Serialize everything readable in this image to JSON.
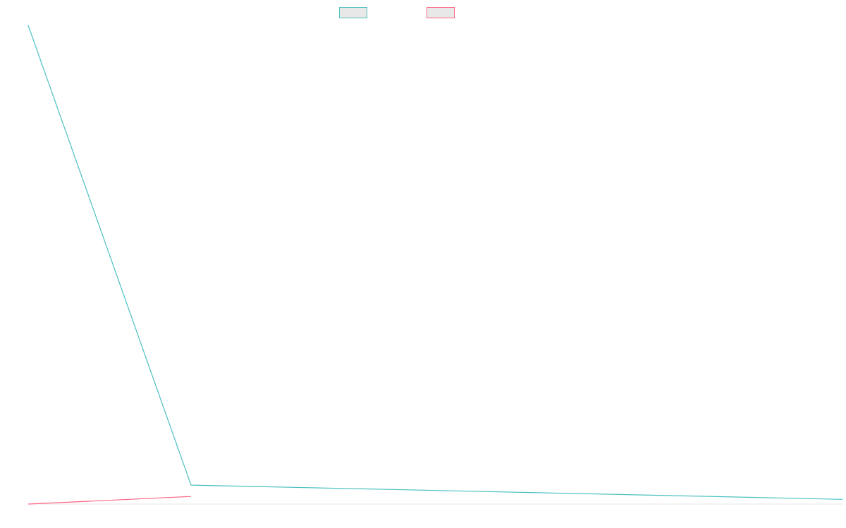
{
  "chart_data": {
    "type": "line",
    "title": "",
    "xlabel": "",
    "ylabel": "",
    "grid": false,
    "legend_position": "top-center",
    "series": [
      {
        "color": "#4bc0c0",
        "legend_fill": "#e8e8e8",
        "points": [
          [
            0,
            100
          ],
          [
            0.2,
            3
          ],
          [
            1,
            0
          ]
        ]
      },
      {
        "color": "#ff6384",
        "legend_fill": "#e8e8e8",
        "points": [
          [
            0,
            -1
          ],
          [
            0.2,
            0.6
          ]
        ]
      }
    ],
    "axes": {
      "x_axis_color": "#e5e5e5",
      "y_axis_color": "#e5e5e5"
    }
  }
}
